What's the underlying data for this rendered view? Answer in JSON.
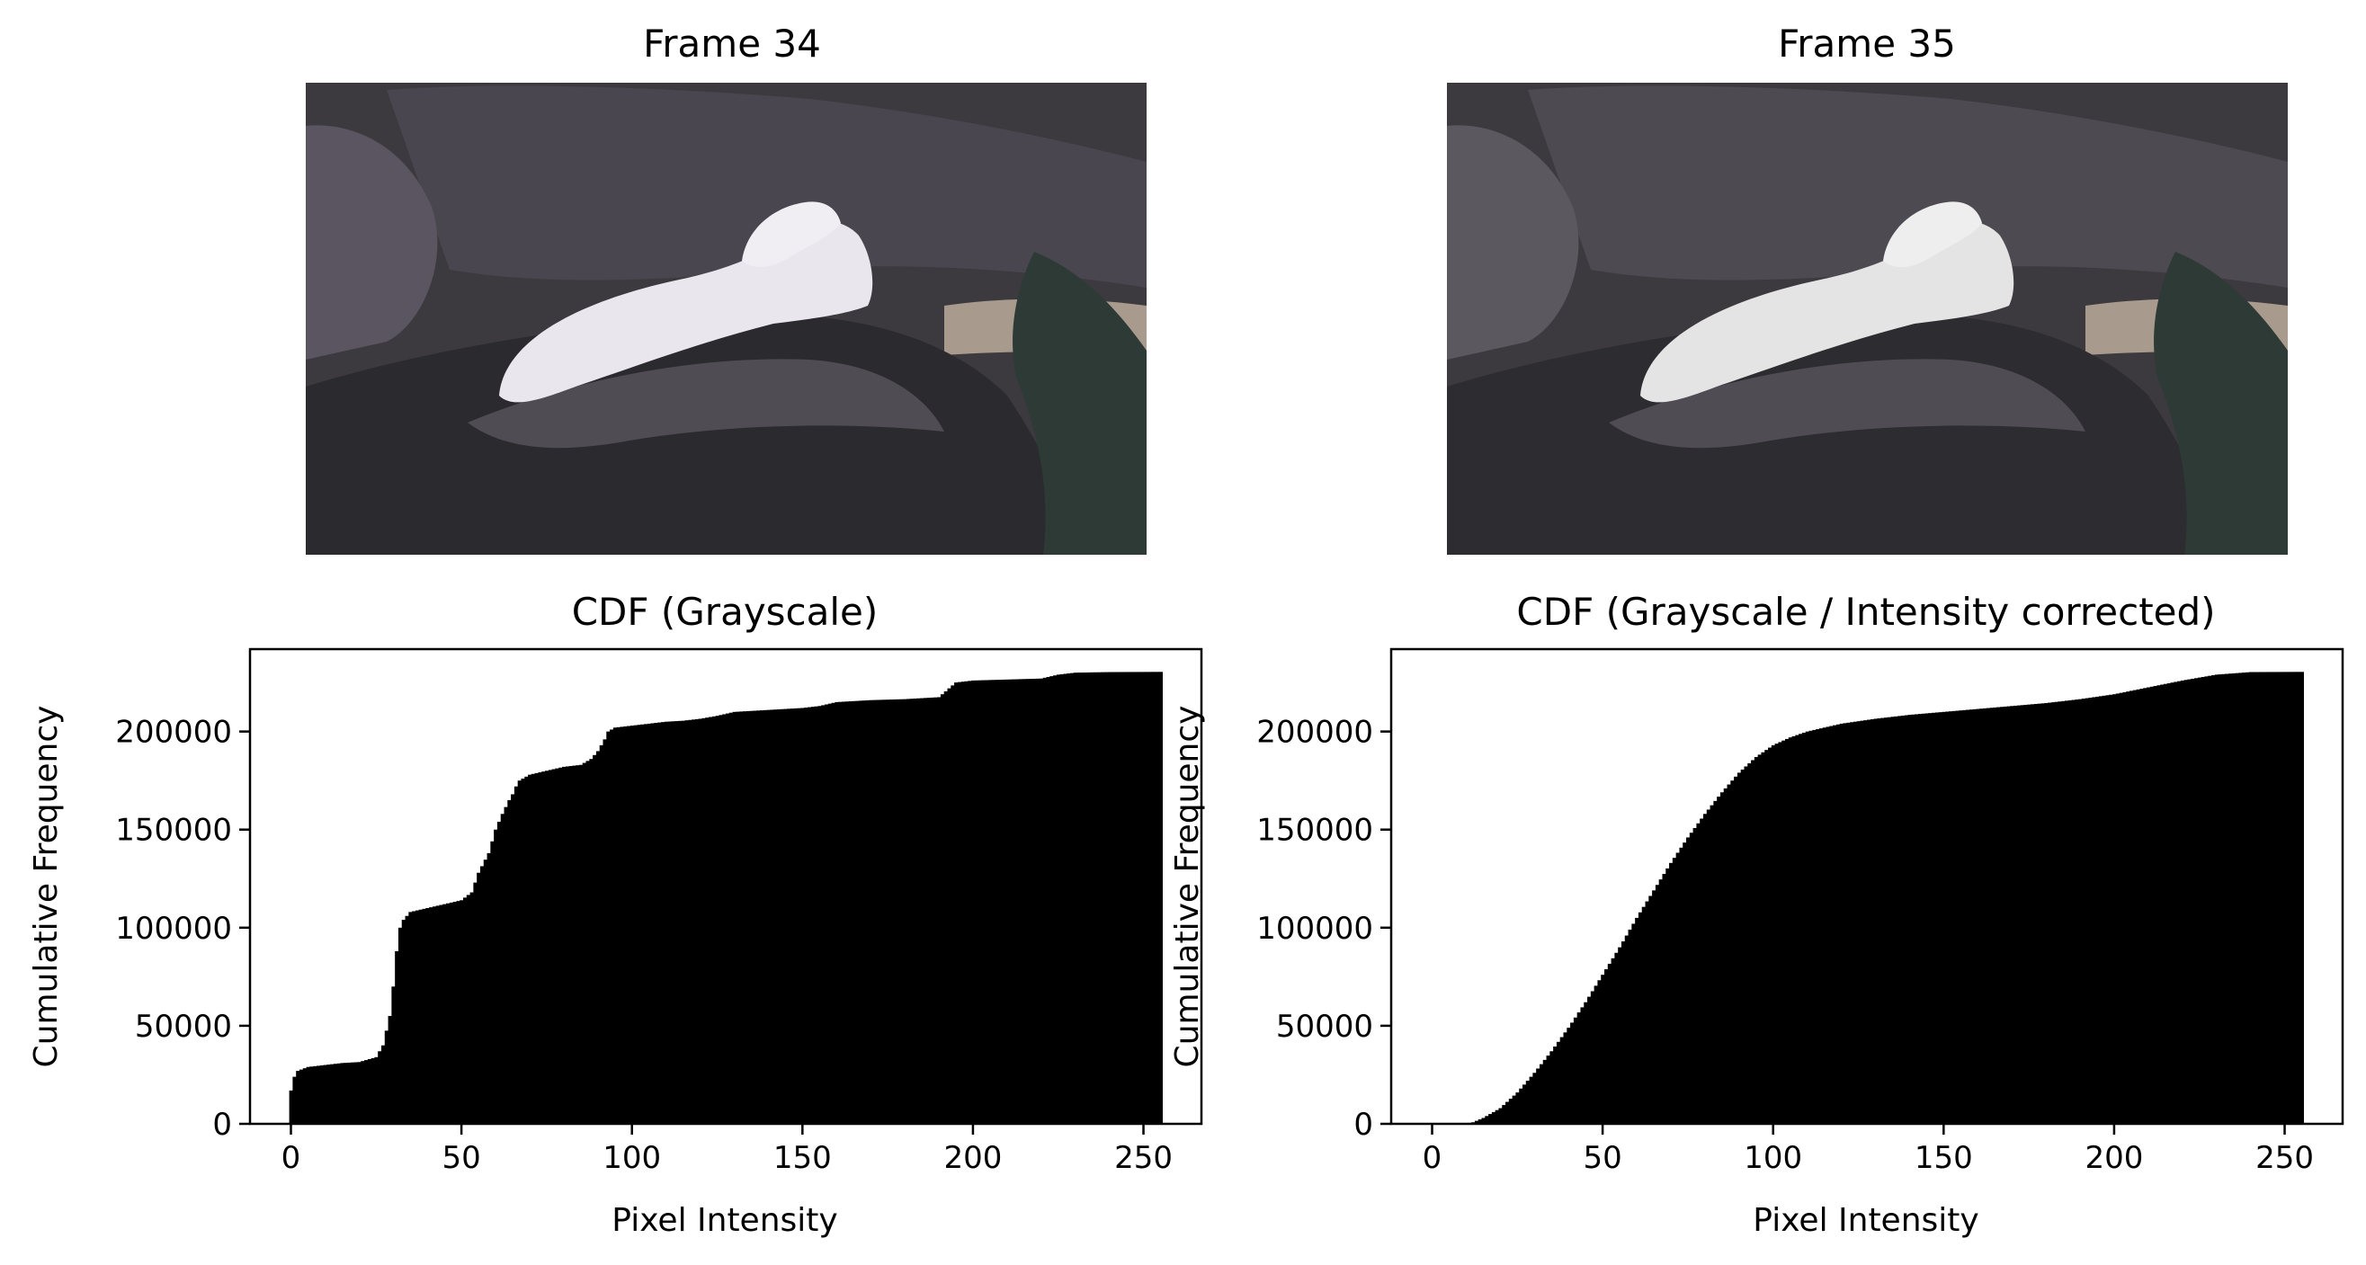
{
  "panels": {
    "frame_a": {
      "title": "Frame 34"
    },
    "frame_b": {
      "title": "Frame 35"
    }
  },
  "colors": {
    "bars": "#000000",
    "rock_dark": "#2b2a2e",
    "rock_mid": "#4a4650",
    "rock_light": "#6d6872",
    "sand": "#a89a8c",
    "fox": "#e9e6ee",
    "fox_b": "#e4e4e4",
    "foliage": "#2e3a36"
  },
  "chart_data": [
    {
      "type": "bar",
      "title": "CDF (Grayscale)",
      "xlabel": "Pixel Intensity",
      "ylabel": "Cumulative Frequency",
      "xlim": [
        -12,
        267
      ],
      "ylim": [
        0,
        242000
      ],
      "xticks": [
        0,
        50,
        100,
        150,
        200,
        250
      ],
      "yticks": [
        0,
        50000,
        100000,
        150000,
        200000
      ],
      "grid": false,
      "bar_width": 1,
      "x": [
        0,
        1,
        2,
        5,
        10,
        15,
        20,
        25,
        27,
        29,
        30,
        31,
        32,
        33,
        35,
        40,
        45,
        50,
        53,
        55,
        58,
        60,
        62,
        64,
        65,
        66,
        67,
        70,
        75,
        80,
        85,
        88,
        90,
        92,
        93,
        95,
        100,
        105,
        110,
        115,
        120,
        125,
        130,
        140,
        150,
        155,
        160,
        170,
        180,
        190,
        193,
        195,
        200,
        210,
        220,
        225,
        230,
        240,
        255
      ],
      "values": [
        17000,
        24000,
        27000,
        29000,
        30000,
        31000,
        31500,
        34000,
        40000,
        55000,
        70000,
        88000,
        100000,
        104000,
        108000,
        110000,
        112000,
        114000,
        118000,
        128000,
        138000,
        150000,
        158000,
        165000,
        168000,
        172000,
        175000,
        178000,
        180000,
        182000,
        183000,
        186000,
        190000,
        196000,
        200000,
        202000,
        203000,
        204000,
        205000,
        205500,
        206500,
        208000,
        210000,
        211000,
        212000,
        213000,
        215000,
        216000,
        216500,
        217500,
        222000,
        225000,
        226000,
        226500,
        227000,
        229000,
        230000,
        230300,
        230400
      ]
    },
    {
      "type": "bar",
      "title": "CDF (Grayscale / Intensity corrected)",
      "xlabel": "Pixel Intensity",
      "ylabel": "Cumulative Frequency",
      "xlim": [
        -12,
        267
      ],
      "ylim": [
        0,
        242000
      ],
      "xticks": [
        0,
        50,
        100,
        150,
        200,
        250
      ],
      "yticks": [
        0,
        50000,
        100000,
        150000,
        200000
      ],
      "grid": false,
      "bar_width": 1,
      "x": [
        0,
        5,
        10,
        12,
        15,
        20,
        25,
        30,
        35,
        40,
        45,
        50,
        55,
        60,
        65,
        70,
        75,
        80,
        85,
        90,
        95,
        100,
        105,
        110,
        115,
        120,
        130,
        140,
        150,
        160,
        170,
        180,
        190,
        200,
        210,
        220,
        230,
        240,
        255
      ],
      "values": [
        0,
        0,
        200,
        800,
        3000,
        8000,
        16000,
        26000,
        37000,
        49000,
        62000,
        76000,
        90000,
        105000,
        119000,
        133000,
        146000,
        158000,
        169000,
        179000,
        187000,
        193000,
        197000,
        200000,
        202000,
        204000,
        206500,
        208500,
        210000,
        211500,
        213000,
        214500,
        216500,
        219000,
        222500,
        226000,
        229000,
        230300,
        230400
      ]
    }
  ]
}
